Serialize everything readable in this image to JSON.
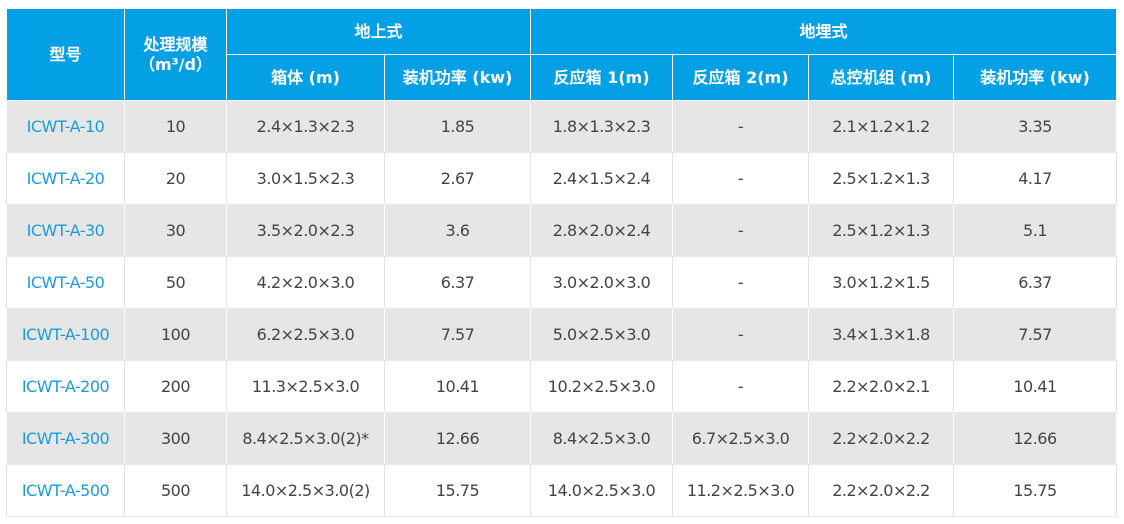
{
  "header": {
    "model": "型号",
    "capacity_line1": "处理规模",
    "capacity_line2": "（m³/d）",
    "above_ground": "地上式",
    "buried": "地埋式",
    "sub": [
      "箱体 (m)",
      "装机功率 (kw)",
      "反应箱 1(m)",
      "反应箱 2(m)",
      "总控机组 (m)",
      "装机功率 (kw)"
    ]
  },
  "colors": {
    "header_bg": "#04a0e6",
    "model_text": "#1a9be0",
    "stripe": "#e6e6e6"
  },
  "rows": [
    [
      "ICWT-A-10",
      "10",
      "2.4×1.3×2.3",
      "1.85",
      "1.8×1.3×2.3",
      "-",
      "2.1×1.2×1.2",
      "3.35"
    ],
    [
      "ICWT-A-20",
      "20",
      "3.0×1.5×2.3",
      "2.67",
      "2.4×1.5×2.4",
      "-",
      "2.5×1.2×1.3",
      "4.17"
    ],
    [
      "ICWT-A-30",
      "30",
      "3.5×2.0×2.3",
      "3.6",
      "2.8×2.0×2.4",
      "-",
      "2.5×1.2×1.3",
      "5.1"
    ],
    [
      "ICWT-A-50",
      "50",
      "4.2×2.0×3.0",
      "6.37",
      "3.0×2.0×3.0",
      "-",
      "3.0×1.2×1.5",
      "6.37"
    ],
    [
      "ICWT-A-100",
      "100",
      "6.2×2.5×3.0",
      "7.57",
      "5.0×2.5×3.0",
      "-",
      "3.4×1.3×1.8",
      "7.57"
    ],
    [
      "ICWT-A-200",
      "200",
      "11.3×2.5×3.0",
      "10.41",
      "10.2×2.5×3.0",
      "-",
      "2.2×2.0×2.1",
      "10.41"
    ],
    [
      "ICWT-A-300",
      "300",
      "8.4×2.5×3.0(2)*",
      "12.66",
      "8.4×2.5×3.0",
      "6.7×2.5×3.0",
      "2.2×2.0×2.2",
      "12.66"
    ],
    [
      "ICWT-A-500",
      "500",
      "14.0×2.5×3.0(2)",
      "15.75",
      "14.0×2.5×3.0",
      "11.2×2.5×3.0",
      "2.2×2.0×2.2",
      "15.75"
    ]
  ]
}
